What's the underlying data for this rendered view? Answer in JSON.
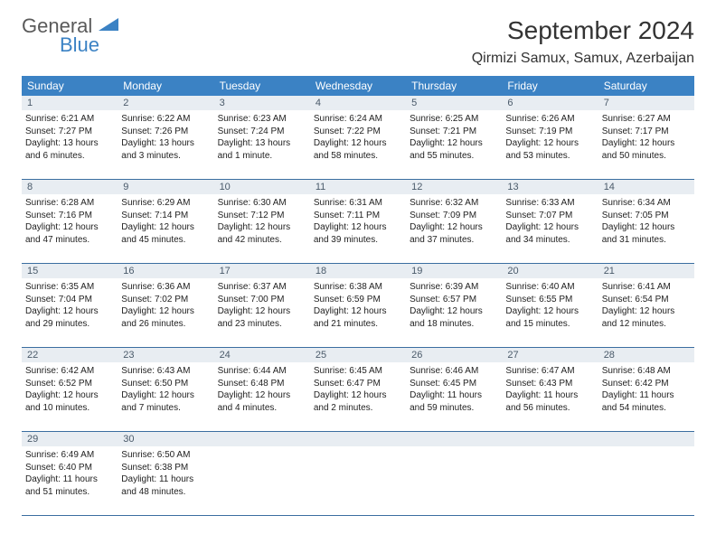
{
  "brand": {
    "part1": "General",
    "part2": "Blue"
  },
  "title": "September 2024",
  "location": "Qirmizi Samux, Samux, Azerbaijan",
  "colors": {
    "header_bg": "#3b82c4",
    "header_text": "#ffffff",
    "daynum_bg": "#e8edf2",
    "daynum_text": "#4a5a6a",
    "week_border": "#3b6ea0",
    "body_text": "#222222",
    "title_text": "#333333"
  },
  "weekdays": [
    "Sunday",
    "Monday",
    "Tuesday",
    "Wednesday",
    "Thursday",
    "Friday",
    "Saturday"
  ],
  "weeks": [
    [
      {
        "n": "1",
        "sr": "Sunrise: 6:21 AM",
        "ss": "Sunset: 7:27 PM",
        "dl": "Daylight: 13 hours and 6 minutes."
      },
      {
        "n": "2",
        "sr": "Sunrise: 6:22 AM",
        "ss": "Sunset: 7:26 PM",
        "dl": "Daylight: 13 hours and 3 minutes."
      },
      {
        "n": "3",
        "sr": "Sunrise: 6:23 AM",
        "ss": "Sunset: 7:24 PM",
        "dl": "Daylight: 13 hours and 1 minute."
      },
      {
        "n": "4",
        "sr": "Sunrise: 6:24 AM",
        "ss": "Sunset: 7:22 PM",
        "dl": "Daylight: 12 hours and 58 minutes."
      },
      {
        "n": "5",
        "sr": "Sunrise: 6:25 AM",
        "ss": "Sunset: 7:21 PM",
        "dl": "Daylight: 12 hours and 55 minutes."
      },
      {
        "n": "6",
        "sr": "Sunrise: 6:26 AM",
        "ss": "Sunset: 7:19 PM",
        "dl": "Daylight: 12 hours and 53 minutes."
      },
      {
        "n": "7",
        "sr": "Sunrise: 6:27 AM",
        "ss": "Sunset: 7:17 PM",
        "dl": "Daylight: 12 hours and 50 minutes."
      }
    ],
    [
      {
        "n": "8",
        "sr": "Sunrise: 6:28 AM",
        "ss": "Sunset: 7:16 PM",
        "dl": "Daylight: 12 hours and 47 minutes."
      },
      {
        "n": "9",
        "sr": "Sunrise: 6:29 AM",
        "ss": "Sunset: 7:14 PM",
        "dl": "Daylight: 12 hours and 45 minutes."
      },
      {
        "n": "10",
        "sr": "Sunrise: 6:30 AM",
        "ss": "Sunset: 7:12 PM",
        "dl": "Daylight: 12 hours and 42 minutes."
      },
      {
        "n": "11",
        "sr": "Sunrise: 6:31 AM",
        "ss": "Sunset: 7:11 PM",
        "dl": "Daylight: 12 hours and 39 minutes."
      },
      {
        "n": "12",
        "sr": "Sunrise: 6:32 AM",
        "ss": "Sunset: 7:09 PM",
        "dl": "Daylight: 12 hours and 37 minutes."
      },
      {
        "n": "13",
        "sr": "Sunrise: 6:33 AM",
        "ss": "Sunset: 7:07 PM",
        "dl": "Daylight: 12 hours and 34 minutes."
      },
      {
        "n": "14",
        "sr": "Sunrise: 6:34 AM",
        "ss": "Sunset: 7:05 PM",
        "dl": "Daylight: 12 hours and 31 minutes."
      }
    ],
    [
      {
        "n": "15",
        "sr": "Sunrise: 6:35 AM",
        "ss": "Sunset: 7:04 PM",
        "dl": "Daylight: 12 hours and 29 minutes."
      },
      {
        "n": "16",
        "sr": "Sunrise: 6:36 AM",
        "ss": "Sunset: 7:02 PM",
        "dl": "Daylight: 12 hours and 26 minutes."
      },
      {
        "n": "17",
        "sr": "Sunrise: 6:37 AM",
        "ss": "Sunset: 7:00 PM",
        "dl": "Daylight: 12 hours and 23 minutes."
      },
      {
        "n": "18",
        "sr": "Sunrise: 6:38 AM",
        "ss": "Sunset: 6:59 PM",
        "dl": "Daylight: 12 hours and 21 minutes."
      },
      {
        "n": "19",
        "sr": "Sunrise: 6:39 AM",
        "ss": "Sunset: 6:57 PM",
        "dl": "Daylight: 12 hours and 18 minutes."
      },
      {
        "n": "20",
        "sr": "Sunrise: 6:40 AM",
        "ss": "Sunset: 6:55 PM",
        "dl": "Daylight: 12 hours and 15 minutes."
      },
      {
        "n": "21",
        "sr": "Sunrise: 6:41 AM",
        "ss": "Sunset: 6:54 PM",
        "dl": "Daylight: 12 hours and 12 minutes."
      }
    ],
    [
      {
        "n": "22",
        "sr": "Sunrise: 6:42 AM",
        "ss": "Sunset: 6:52 PM",
        "dl": "Daylight: 12 hours and 10 minutes."
      },
      {
        "n": "23",
        "sr": "Sunrise: 6:43 AM",
        "ss": "Sunset: 6:50 PM",
        "dl": "Daylight: 12 hours and 7 minutes."
      },
      {
        "n": "24",
        "sr": "Sunrise: 6:44 AM",
        "ss": "Sunset: 6:48 PM",
        "dl": "Daylight: 12 hours and 4 minutes."
      },
      {
        "n": "25",
        "sr": "Sunrise: 6:45 AM",
        "ss": "Sunset: 6:47 PM",
        "dl": "Daylight: 12 hours and 2 minutes."
      },
      {
        "n": "26",
        "sr": "Sunrise: 6:46 AM",
        "ss": "Sunset: 6:45 PM",
        "dl": "Daylight: 11 hours and 59 minutes."
      },
      {
        "n": "27",
        "sr": "Sunrise: 6:47 AM",
        "ss": "Sunset: 6:43 PM",
        "dl": "Daylight: 11 hours and 56 minutes."
      },
      {
        "n": "28",
        "sr": "Sunrise: 6:48 AM",
        "ss": "Sunset: 6:42 PM",
        "dl": "Daylight: 11 hours and 54 minutes."
      }
    ],
    [
      {
        "n": "29",
        "sr": "Sunrise: 6:49 AM",
        "ss": "Sunset: 6:40 PM",
        "dl": "Daylight: 11 hours and 51 minutes."
      },
      {
        "n": "30",
        "sr": "Sunrise: 6:50 AM",
        "ss": "Sunset: 6:38 PM",
        "dl": "Daylight: 11 hours and 48 minutes."
      },
      null,
      null,
      null,
      null,
      null
    ]
  ]
}
